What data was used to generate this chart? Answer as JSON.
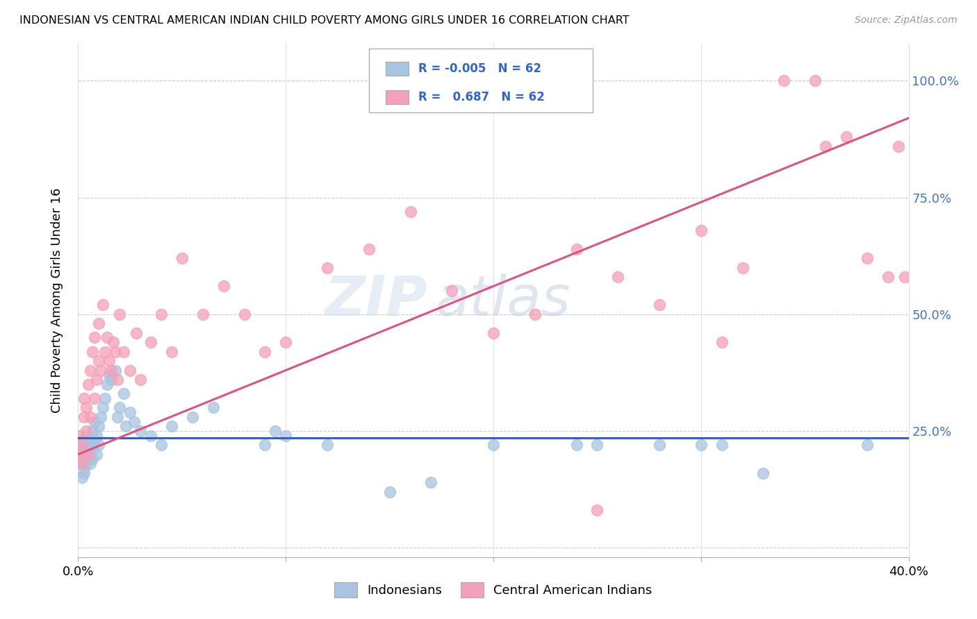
{
  "title": "INDONESIAN VS CENTRAL AMERICAN INDIAN CHILD POVERTY AMONG GIRLS UNDER 16 CORRELATION CHART",
  "source": "Source: ZipAtlas.com",
  "ylabel": "Child Poverty Among Girls Under 16",
  "ytick_labels": [
    "",
    "25.0%",
    "50.0%",
    "75.0%",
    "100.0%"
  ],
  "xlim": [
    0.0,
    0.4
  ],
  "ylim": [
    -0.02,
    1.08
  ],
  "r_indonesian": -0.005,
  "n_indonesian": 62,
  "r_central": 0.687,
  "n_central": 62,
  "indonesian_color": "#a8c4e0",
  "central_color": "#f4a0b8",
  "indonesian_line_color": "#3060c0",
  "central_line_color": "#e05080",
  "watermark_zip": "ZIP",
  "watermark_atlas": "atlas",
  "indonesian_x": [
    0.001,
    0.001,
    0.001,
    0.002,
    0.002,
    0.002,
    0.003,
    0.003,
    0.003,
    0.003,
    0.004,
    0.004,
    0.004,
    0.004,
    0.005,
    0.005,
    0.005,
    0.006,
    0.006,
    0.006,
    0.007,
    0.007,
    0.007,
    0.008,
    0.008,
    0.009,
    0.009,
    0.01,
    0.01,
    0.011,
    0.012,
    0.013,
    0.014,
    0.015,
    0.016,
    0.018,
    0.019,
    0.02,
    0.022,
    0.023,
    0.025,
    0.027,
    0.03,
    0.035,
    0.04,
    0.045,
    0.055,
    0.065,
    0.09,
    0.095,
    0.1,
    0.12,
    0.15,
    0.17,
    0.2,
    0.24,
    0.25,
    0.28,
    0.3,
    0.31,
    0.33,
    0.38
  ],
  "indonesian_y": [
    0.2,
    0.22,
    0.18,
    0.15,
    0.19,
    0.23,
    0.17,
    0.21,
    0.2,
    0.16,
    0.18,
    0.22,
    0.2,
    0.24,
    0.19,
    0.21,
    0.23,
    0.2,
    0.18,
    0.22,
    0.25,
    0.21,
    0.19,
    0.23,
    0.27,
    0.2,
    0.24,
    0.26,
    0.22,
    0.28,
    0.3,
    0.32,
    0.35,
    0.37,
    0.36,
    0.38,
    0.28,
    0.3,
    0.33,
    0.26,
    0.29,
    0.27,
    0.25,
    0.24,
    0.22,
    0.26,
    0.28,
    0.3,
    0.22,
    0.25,
    0.24,
    0.22,
    0.12,
    0.14,
    0.22,
    0.22,
    0.22,
    0.22,
    0.22,
    0.22,
    0.16,
    0.22
  ],
  "central_x": [
    0.001,
    0.001,
    0.002,
    0.002,
    0.003,
    0.003,
    0.004,
    0.004,
    0.005,
    0.005,
    0.006,
    0.006,
    0.007,
    0.008,
    0.008,
    0.009,
    0.01,
    0.01,
    0.011,
    0.012,
    0.013,
    0.014,
    0.015,
    0.016,
    0.017,
    0.018,
    0.019,
    0.02,
    0.022,
    0.025,
    0.028,
    0.03,
    0.035,
    0.04,
    0.045,
    0.05,
    0.06,
    0.07,
    0.08,
    0.09,
    0.1,
    0.12,
    0.14,
    0.16,
    0.18,
    0.2,
    0.22,
    0.24,
    0.26,
    0.28,
    0.3,
    0.32,
    0.34,
    0.355,
    0.36,
    0.37,
    0.38,
    0.39,
    0.395,
    0.398,
    0.25,
    0.31
  ],
  "central_y": [
    0.2,
    0.24,
    0.18,
    0.22,
    0.28,
    0.32,
    0.25,
    0.3,
    0.2,
    0.35,
    0.38,
    0.28,
    0.42,
    0.45,
    0.32,
    0.36,
    0.4,
    0.48,
    0.38,
    0.52,
    0.42,
    0.45,
    0.4,
    0.38,
    0.44,
    0.42,
    0.36,
    0.5,
    0.42,
    0.38,
    0.46,
    0.36,
    0.44,
    0.5,
    0.42,
    0.62,
    0.5,
    0.56,
    0.5,
    0.42,
    0.44,
    0.6,
    0.64,
    0.72,
    0.55,
    0.46,
    0.5,
    0.64,
    0.58,
    0.52,
    0.68,
    0.6,
    1.0,
    1.0,
    0.86,
    0.88,
    0.62,
    0.58,
    0.86,
    0.58,
    0.08,
    0.44
  ]
}
